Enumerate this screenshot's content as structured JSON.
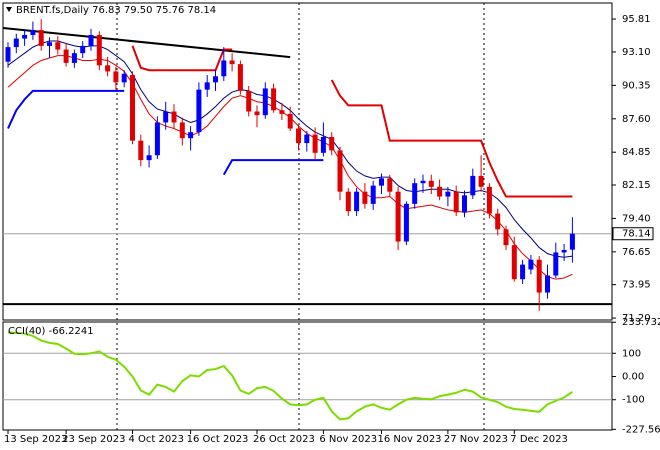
{
  "chart_data": [
    {
      "type": "candlestick",
      "title": "BRENT.fs,Daily 76.83 79.50 75.76 78.14",
      "categories": [
        "13 Sep 2023",
        null,
        null,
        null,
        null,
        null,
        null,
        "23 Sep 2023",
        null,
        null,
        null,
        null,
        null,
        null,
        null,
        "4 Oct 2023",
        null,
        null,
        null,
        null,
        null,
        null,
        "16 Oct 2023",
        null,
        null,
        null,
        null,
        null,
        null,
        null,
        "26 Oct 2023",
        null,
        null,
        null,
        null,
        null,
        null,
        null,
        "6 Nov 2023",
        null,
        null,
        null,
        null,
        null,
        null,
        "16 Nov 2023",
        null,
        null,
        null,
        null,
        null,
        null,
        null,
        "27 Nov 2023",
        null,
        null,
        null,
        null,
        null,
        null,
        null,
        "7 Dec 2023",
        null,
        null,
        null,
        null,
        null,
        null,
        null
      ],
      "open": [
        92.3,
        93.5,
        94.2,
        94.5,
        94.9,
        93.6,
        93.9,
        93.3,
        92.2,
        93.0,
        93.6,
        94.5,
        92.0,
        91.5,
        90.6,
        91.2,
        85.8,
        84.2,
        84.6,
        87.3,
        88.2,
        87.3,
        86.0,
        86.5,
        90.0,
        90.6,
        91.1,
        92.4,
        92.1,
        89.9,
        88.2,
        87.9,
        90.1,
        88.3,
        88.0,
        86.8,
        85.6,
        86.3,
        84.8,
        86.1,
        85.0,
        81.6,
        80.0,
        81.6,
        80.6,
        82.1,
        82.7,
        81.6,
        77.5,
        80.6,
        82.3,
        82.5,
        82.0,
        81.2,
        81.6,
        79.9,
        81.3,
        82.9,
        82.0,
        79.8,
        78.5,
        77.2,
        74.4,
        75.2,
        76.0,
        73.3,
        74.7,
        76.6,
        76.83
      ],
      "high": [
        93.9,
        94.6,
        94.9,
        95.6,
        95.8,
        94.3,
        94.4,
        93.8,
        93.3,
        94.0,
        95.0,
        94.8,
        92.7,
        91.9,
        91.6,
        91.5,
        86.3,
        85.4,
        87.8,
        89.0,
        88.8,
        87.7,
        87.0,
        90.6,
        91.2,
        91.6,
        93.5,
        93.0,
        92.4,
        90.3,
        88.7,
        90.6,
        90.5,
        88.9,
        88.6,
        87.1,
        86.6,
        86.9,
        87.3,
        86.5,
        85.3,
        81.9,
        81.9,
        82.3,
        82.5,
        83.1,
        83.0,
        82.0,
        80.8,
        82.7,
        83.0,
        83.0,
        82.6,
        82.0,
        82.1,
        81.7,
        83.5,
        84.6,
        82.3,
        80.2,
        78.8,
        77.9,
        76.0,
        76.4,
        76.3,
        75.6,
        77.4,
        77.3,
        79.5
      ],
      "low": [
        91.8,
        93.0,
        93.6,
        94.1,
        93.2,
        92.6,
        92.9,
        91.9,
        91.8,
        92.6,
        93.2,
        91.6,
        91.1,
        90.0,
        90.2,
        85.5,
        83.7,
        83.6,
        84.3,
        86.7,
        86.8,
        85.4,
        85.0,
        86.2,
        89.4,
        89.9,
        90.7,
        91.5,
        89.6,
        87.8,
        86.9,
        87.6,
        88.1,
        87.5,
        86.6,
        85.0,
        84.9,
        84.3,
        84.5,
        84.6,
        80.9,
        79.6,
        79.6,
        80.2,
        80.1,
        81.4,
        81.2,
        76.8,
        77.2,
        80.2,
        81.5,
        81.4,
        80.9,
        80.4,
        79.6,
        79.5,
        81.0,
        81.6,
        79.4,
        78.0,
        76.8,
        74.2,
        74.0,
        74.8,
        71.8,
        72.8,
        74.5,
        75.9,
        75.76
      ],
      "close": [
        93.5,
        94.2,
        94.5,
        94.9,
        93.6,
        93.9,
        93.3,
        92.2,
        93.0,
        93.6,
        94.5,
        92.0,
        91.5,
        90.6,
        91.3,
        85.8,
        84.2,
        84.6,
        87.3,
        88.2,
        87.3,
        86.0,
        86.5,
        90.0,
        90.6,
        91.1,
        92.4,
        92.1,
        89.9,
        88.2,
        87.9,
        90.1,
        88.3,
        88.0,
        86.8,
        85.6,
        86.3,
        84.8,
        86.1,
        85.0,
        81.6,
        80.0,
        81.6,
        80.6,
        82.1,
        82.7,
        81.6,
        77.5,
        80.6,
        82.3,
        82.5,
        82.0,
        81.2,
        81.6,
        79.9,
        81.3,
        82.9,
        82.0,
        79.8,
        78.5,
        77.2,
        74.4,
        75.6,
        76.0,
        73.3,
        74.7,
        76.6,
        76.8,
        78.14
      ],
      "up_color": "#0000ff",
      "down_color": "#e00000",
      "lines": [
        {
          "color": "#000080",
          "values": [
            92.0,
            92.5,
            93.0,
            93.5,
            93.8,
            94.0,
            94.0,
            93.8,
            93.6,
            93.5,
            93.6,
            93.6,
            93.3,
            92.8,
            92.3,
            91.3,
            90.0,
            89.0,
            88.4,
            88.2,
            88.0,
            87.6,
            87.3,
            87.5,
            88.0,
            88.6,
            89.3,
            89.8,
            90.0,
            89.9,
            89.6,
            89.5,
            89.2,
            88.8,
            88.3,
            87.6,
            87.0,
            86.5,
            86.2,
            85.9,
            85.0,
            84.0,
            83.3,
            82.9,
            82.7,
            82.8,
            82.8,
            82.1,
            81.7,
            81.6,
            81.7,
            81.8,
            81.8,
            81.8,
            81.6,
            81.5,
            81.6,
            81.7,
            81.5,
            81.0,
            80.3,
            79.3,
            78.5,
            77.8,
            77.0,
            76.5,
            76.3,
            76.2,
            76.3
          ]
        },
        {
          "color": "#e00000",
          "values": [
            90.2,
            90.8,
            91.4,
            92.0,
            92.4,
            92.6,
            92.8,
            92.8,
            92.6,
            92.4,
            92.4,
            92.5,
            92.4,
            92.0,
            91.5,
            90.5,
            89.2,
            88.0,
            87.3,
            87.0,
            86.8,
            86.5,
            86.2,
            86.5,
            87.0,
            87.8,
            88.6,
            89.3,
            89.5,
            89.3,
            89.0,
            88.9,
            88.6,
            88.2,
            87.7,
            87.0,
            86.4,
            86.0,
            85.7,
            85.3,
            84.2,
            82.9,
            82.0,
            81.4,
            81.1,
            81.1,
            81.2,
            80.6,
            80.2,
            80.3,
            80.4,
            80.5,
            80.3,
            80.1,
            80.0,
            79.9,
            80.0,
            80.1,
            79.8,
            79.2,
            78.4,
            77.3,
            76.5,
            75.9,
            75.2,
            74.6,
            74.4,
            74.5,
            74.8
          ]
        },
        {
          "color": "#e00000",
          "width": 2,
          "values": [
            null,
            null,
            null,
            null,
            null,
            null,
            null,
            null,
            null,
            null,
            null,
            null,
            null,
            null,
            null,
            93.6,
            91.8,
            91.6,
            91.6,
            91.6,
            91.6,
            91.6,
            91.6,
            91.6,
            91.6,
            91.6,
            93.3,
            93.3,
            null,
            null,
            null,
            null,
            null,
            null,
            null,
            null,
            null,
            null,
            null,
            90.8,
            89.5,
            88.7,
            88.7,
            88.7,
            88.7,
            88.7,
            85.8,
            85.8,
            85.8,
            85.8,
            85.8,
            85.8,
            85.8,
            85.8,
            85.8,
            85.8,
            85.8,
            85.8,
            84.0,
            82.5,
            81.2,
            81.2,
            81.2,
            81.2,
            81.2,
            81.2,
            81.2,
            81.2,
            81.2
          ]
        },
        {
          "color": "#0000ff",
          "width": 2,
          "values": [
            86.8,
            88.3,
            89.2,
            89.9,
            89.9,
            89.9,
            89.9,
            89.9,
            89.9,
            89.9,
            89.9,
            89.9,
            89.9,
            89.9,
            89.9,
            null,
            null,
            null,
            null,
            null,
            null,
            null,
            null,
            null,
            null,
            null,
            83.0,
            84.2,
            84.2,
            84.2,
            84.2,
            84.2,
            84.2,
            84.2,
            84.2,
            84.2,
            84.2,
            84.2,
            84.2,
            null,
            null,
            null,
            null,
            null,
            null,
            null,
            null,
            null,
            null,
            null,
            null,
            null,
            null,
            null,
            null,
            null,
            null,
            null,
            null,
            null,
            null,
            null,
            null,
            null,
            null,
            null,
            null,
            null,
            null
          ]
        }
      ],
      "trend_line": {
        "x": [
          0,
          34
        ],
        "y": [
          95.07,
          92.68
        ],
        "color": "#000000"
      },
      "support_line": {
        "value": 72.35,
        "color": "#000000"
      },
      "last_price": 78.14,
      "ylim": [
        71.04,
        97.13
      ],
      "yticks": [
        95.81,
        {
          "value": 93.1,
          "label": "93.10"
        },
        90.35,
        {
          "value": 87.6,
          "label": "87.60"
        },
        84.85,
        82.15,
        {
          "value": 79.4,
          "label": "79.40"
        },
        76.65,
        73.95,
        {
          "value": 71.2,
          "label": "71.20"
        }
      ]
    },
    {
      "type": "line",
      "title": "CCI(40) -66.2241",
      "color": "#7cdc00",
      "values": [
        190,
        188,
        185,
        175,
        155,
        145,
        140,
        120,
        98,
        96,
        100,
        108,
        85,
        72,
        42,
        0,
        -60,
        -78,
        -35,
        -45,
        -65,
        -20,
        5,
        0,
        28,
        32,
        45,
        5,
        -60,
        -75,
        -50,
        -45,
        -62,
        -95,
        -120,
        -124,
        -120,
        -100,
        -92,
        -150,
        -185,
        -180,
        -150,
        -130,
        -120,
        -135,
        -143,
        -120,
        -100,
        -92,
        -96,
        -98,
        -85,
        -78,
        -70,
        -57,
        -65,
        -90,
        -100,
        -110,
        -130,
        -140,
        -143,
        -148,
        -152,
        -120,
        -105,
        -90,
        -66.2241
      ],
      "ylim": [
        -230.4,
        234.8
      ],
      "yticks": [
        233.7321,
        100,
        {
          "value": 0,
          "label": "0.00"
        },
        -100,
        -227.566
      ],
      "grid": true
    }
  ]
}
